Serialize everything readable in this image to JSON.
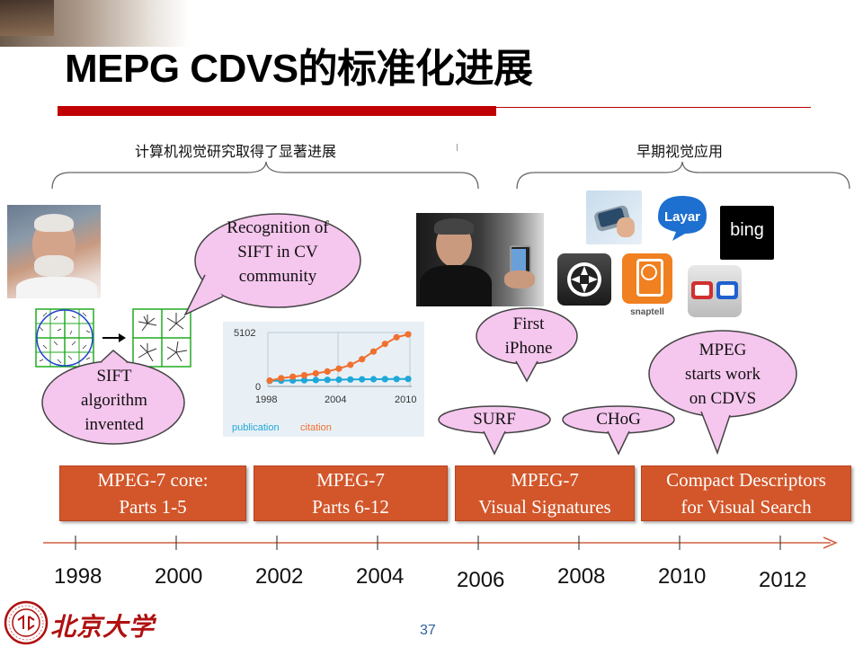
{
  "title": "MEPG CDVS的标准化进展",
  "band_left_label": "计算机视觉研究取得了显著进展",
  "band_right_label": "早期视觉应用",
  "bubbles": {
    "sift": [
      "SIFT",
      "algorithm",
      "invented"
    ],
    "recognition": [
      "Recognition of",
      "SIFT in CV",
      "community"
    ],
    "iphone": [
      "First",
      "iPhone"
    ],
    "surf": "SURF",
    "chog": "CHoG",
    "mpeg": [
      "MPEG",
      "starts work",
      "on CDVS"
    ]
  },
  "boxes": [
    {
      "line1": "MPEG-7 core:",
      "line2": "Parts 1-5"
    },
    {
      "line1": "MPEG-7",
      "line2": "Parts 6-12"
    },
    {
      "line1": "MPEG-7",
      "line2": "Visual Signatures"
    },
    {
      "line1": "Compact Descriptors",
      "line2": "for Visual Search"
    }
  ],
  "years": [
    "1998",
    "2000",
    "2002",
    "2004",
    "2006",
    "2008",
    "2010",
    "2012"
  ],
  "apps": {
    "layar": "Layar",
    "bing": "bing",
    "snaptell": "snaptell"
  },
  "footer": {
    "university": "北京大学",
    "page_number": "37"
  },
  "colors": {
    "accent_red": "#c00000",
    "box_orange": "#d2562a",
    "bubble_pink": "#f5c6ee",
    "citation_orange": "#f07030",
    "publication_blue": "#1ea8d8"
  },
  "chart_data": {
    "type": "line",
    "x": [
      1998,
      1999,
      2000,
      2001,
      2002,
      2003,
      2004,
      2005,
      2006,
      2007,
      2008,
      2009,
      2010
    ],
    "x_ticks": [
      "1998",
      "2004",
      "2010"
    ],
    "y_ticks": [
      "5102",
      "0"
    ],
    "ylim": [
      0,
      5102
    ],
    "series": [
      {
        "name": "publication",
        "color": "#1ea8d8",
        "values": [
          20,
          40,
          60,
          80,
          100,
          120,
          140,
          160,
          180,
          190,
          200,
          210,
          220
        ]
      },
      {
        "name": "citation",
        "color": "#f07030",
        "values": [
          50,
          300,
          450,
          600,
          800,
          1000,
          1300,
          1700,
          2300,
          3100,
          3900,
          4600,
          4900
        ]
      }
    ]
  }
}
